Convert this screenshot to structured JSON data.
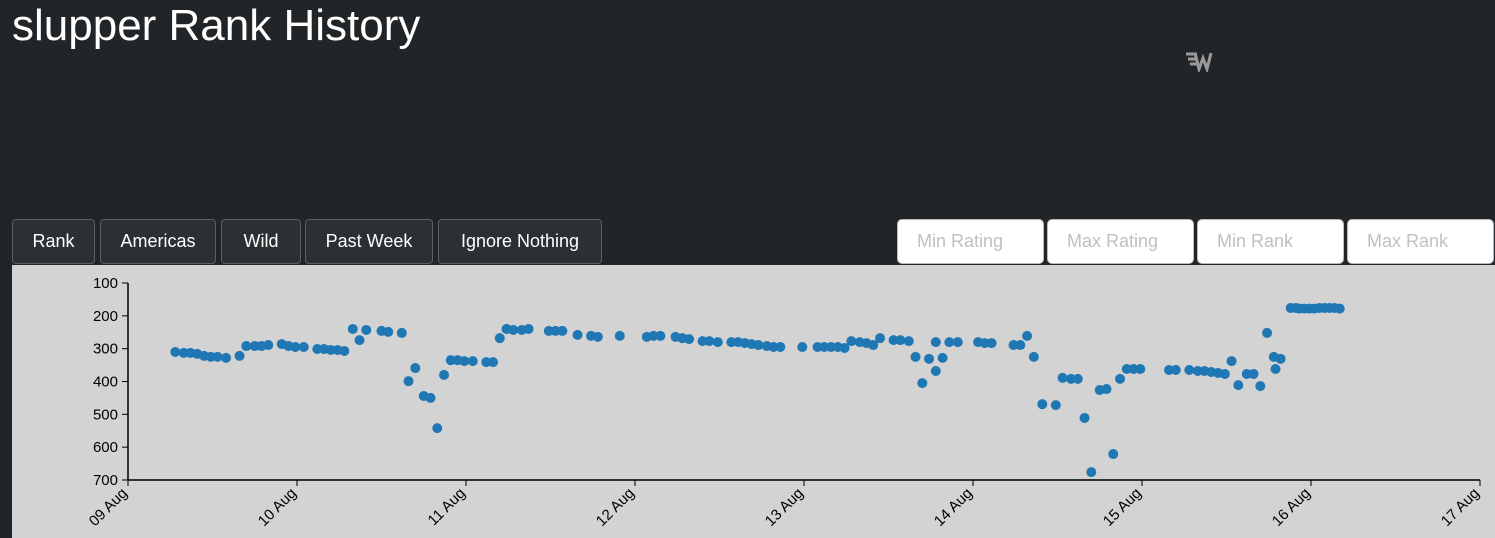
{
  "header": {
    "title": "slupper Rank History"
  },
  "buttons": [
    "Rank",
    "Americas",
    "Wild",
    "Past Week",
    "Ignore Nothing"
  ],
  "inputs": [
    "Min Rating",
    "Max Rating",
    "Min Rank",
    "Max Rank"
  ],
  "chart_data": {
    "type": "scatter",
    "xlim": [
      9,
      17
    ],
    "xticks": [
      {
        "value": 9,
        "label": "09 Aug"
      },
      {
        "value": 10,
        "label": "10 Aug"
      },
      {
        "value": 11,
        "label": "11 Aug"
      },
      {
        "value": 12,
        "label": "12 Aug"
      },
      {
        "value": 13,
        "label": "13 Aug"
      },
      {
        "value": 14,
        "label": "14 Aug"
      },
      {
        "value": 15,
        "label": "15 Aug"
      },
      {
        "value": 16,
        "label": "16 Aug"
      },
      {
        "value": 17,
        "label": "17 Aug"
      }
    ],
    "ylim": [
      700,
      100
    ],
    "yticks": [
      100,
      200,
      300,
      400,
      500,
      600,
      700
    ],
    "grid": false,
    "series": [
      {
        "color": "#1f77b4",
        "x": [
          9.28,
          9.33,
          9.37,
          9.41,
          9.45,
          9.49,
          9.53,
          9.58,
          9.66,
          9.7,
          9.75,
          9.79,
          9.83,
          9.91,
          9.95,
          9.99,
          10.04,
          10.12,
          10.16,
          10.2,
          10.24,
          10.28,
          10.33,
          10.37,
          10.41,
          10.5,
          10.54,
          10.62,
          10.66,
          10.7,
          10.75,
          10.79,
          10.83,
          10.87,
          10.91,
          10.95,
          10.99,
          11.04,
          11.12,
          11.16,
          11.2,
          11.24,
          11.28,
          11.33,
          11.37,
          11.49,
          11.53,
          11.57,
          11.66,
          11.74,
          11.78,
          11.91,
          12.07,
          12.11,
          12.15,
          12.24,
          12.28,
          12.32,
          12.4,
          12.44,
          12.49,
          12.57,
          12.61,
          12.65,
          12.69,
          12.73,
          12.78,
          12.82,
          12.86,
          12.99,
          13.08,
          13.12,
          13.16,
          13.2,
          13.24,
          13.28,
          13.33,
          13.37,
          13.41,
          13.45,
          13.53,
          13.57,
          13.62,
          13.66,
          13.7,
          13.74,
          13.78,
          13.78,
          13.82,
          13.86,
          13.91,
          14.03,
          14.07,
          14.11,
          14.24,
          14.28,
          14.32,
          14.36,
          14.41,
          14.49,
          14.53,
          14.58,
          14.62,
          14.66,
          14.7,
          14.75,
          14.79,
          14.83,
          14.87,
          14.91,
          14.95,
          14.99,
          15.16,
          15.2,
          15.28,
          15.33,
          15.37,
          15.41,
          15.45,
          15.49,
          15.53,
          15.57,
          15.62,
          15.66,
          15.7,
          15.74,
          15.78,
          15.79,
          15.82,
          15.88,
          15.91,
          15.93,
          15.96,
          15.99,
          16.02,
          16.05,
          16.08,
          16.11,
          16.14,
          16.17
        ],
        "values": [
          310,
          313,
          313,
          316,
          322,
          325,
          325,
          328,
          322,
          292,
          292,
          292,
          289,
          286,
          292,
          295,
          295,
          301,
          301,
          304,
          304,
          307,
          240,
          274,
          243,
          246,
          249,
          252,
          399,
          359,
          444,
          450,
          542,
          380,
          335,
          335,
          338,
          338,
          341,
          341,
          268,
          240,
          243,
          243,
          240,
          246,
          246,
          246,
          258,
          261,
          264,
          261,
          264,
          261,
          261,
          264,
          268,
          271,
          277,
          277,
          280,
          280,
          280,
          283,
          286,
          289,
          292,
          295,
          295,
          295,
          295,
          295,
          295,
          295,
          298,
          277,
          280,
          283,
          289,
          268,
          274,
          274,
          277,
          325,
          405,
          331,
          280,
          368,
          328,
          280,
          280,
          280,
          283,
          283,
          289,
          289,
          261,
          325,
          469,
          472,
          389,
          392,
          392,
          511,
          676,
          426,
          423,
          621,
          392,
          362,
          362,
          362,
          365,
          365,
          365,
          368,
          368,
          371,
          374,
          377,
          338,
          411,
          377,
          377,
          414,
          252,
          325,
          362,
          331,
          176,
          176,
          178,
          178,
          178,
          178,
          176,
          176,
          176,
          176,
          178
        ]
      }
    ]
  }
}
